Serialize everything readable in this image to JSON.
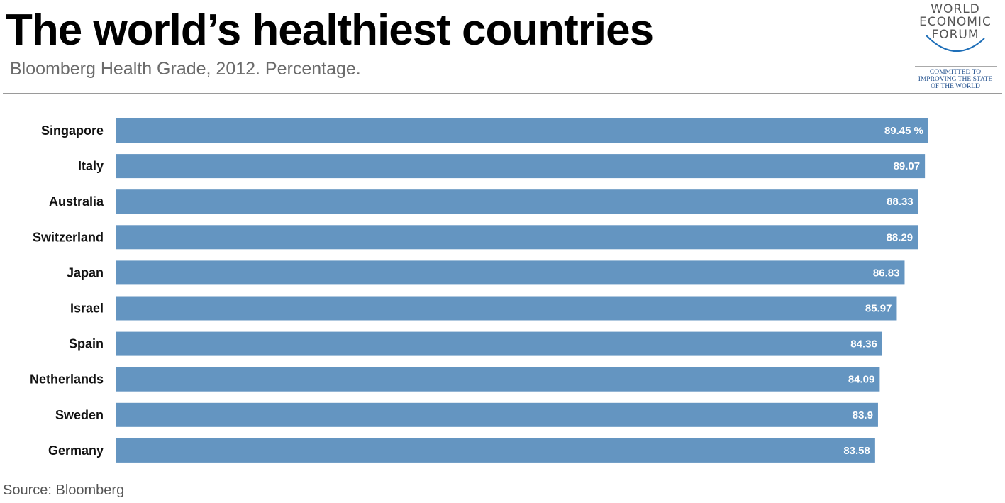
{
  "header": {
    "title": "The world’s healthiest countries",
    "subtitle": "Bloomberg Health Grade, 2012. Percentage."
  },
  "logo": {
    "line1": "WORLD",
    "line2": "ECONOMIC",
    "line3": "FORUM",
    "tagline1": "COMMITTED TO",
    "tagline2": "IMPROVING THE STATE",
    "tagline3": "OF THE WORLD"
  },
  "source": "Source: Bloomberg",
  "colors": {
    "bar": "#6495c1",
    "value_text": "#ffffff",
    "logo_arc": "#1f6fb8"
  },
  "chart_data": {
    "type": "bar",
    "orientation": "horizontal",
    "categories": [
      "Singapore",
      "Italy",
      "Australia",
      "Switzerland",
      "Japan",
      "Israel",
      "Spain",
      "Netherlands",
      "Sweden",
      "Germany"
    ],
    "values": [
      89.45,
      89.07,
      88.33,
      88.29,
      86.83,
      85.97,
      84.36,
      84.09,
      83.9,
      83.58
    ],
    "value_labels": [
      "89.45 %",
      "89.07",
      "88.33",
      "88.29",
      "86.83",
      "85.97",
      "84.36",
      "84.09",
      "83.9",
      "83.58"
    ],
    "title": "The world’s healthiest countries",
    "subtitle": "Bloomberg Health Grade, 2012. Percentage.",
    "xlabel": "",
    "ylabel": "",
    "xlim": [
      0,
      89.45
    ],
    "grid": false,
    "legend": "none"
  }
}
